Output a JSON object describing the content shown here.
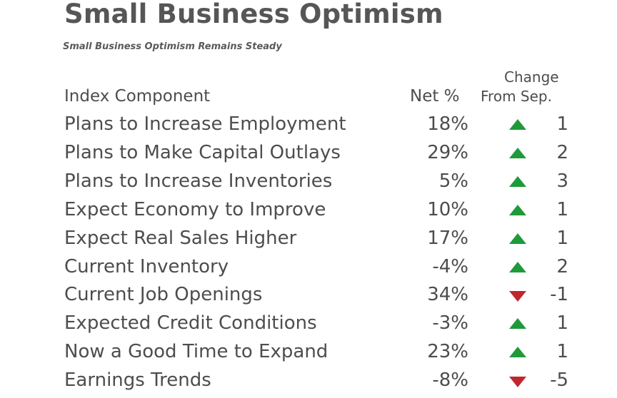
{
  "title": "Small Business Optimism",
  "subtitle": "Small Business Optimism Remains Steady",
  "headers": {
    "component": "Index Component",
    "net": "Net %",
    "change_line1": "Change",
    "change_line2": "From Sep."
  },
  "colors": {
    "up": "#1f9a3a",
    "down": "#c0272d",
    "text": "#4d4d4d"
  },
  "chart_data": {
    "type": "table",
    "title": "Small Business Optimism",
    "subtitle": "Small Business Optimism Remains Steady",
    "columns": [
      "Index Component",
      "Net %",
      "Change From Sep."
    ],
    "rows": [
      {
        "label": "Plans to Increase Employment",
        "net": "18%",
        "direction": "up",
        "change": "1"
      },
      {
        "label": "Plans to Make Capital Outlays",
        "net": "29%",
        "direction": "up",
        "change": "2"
      },
      {
        "label": "Plans to Increase Inventories",
        "net": "5%",
        "direction": "up",
        "change": "3"
      },
      {
        "label": "Expect Economy to Improve",
        "net": "10%",
        "direction": "up",
        "change": "1"
      },
      {
        "label": "Expect Real Sales Higher",
        "net": "17%",
        "direction": "up",
        "change": "1"
      },
      {
        "label": "Current Inventory",
        "net": "-4%",
        "direction": "up",
        "change": "2"
      },
      {
        "label": "Current Job Openings",
        "net": "34%",
        "direction": "down",
        "change": "-1"
      },
      {
        "label": "Expected Credit Conditions",
        "net": "-3%",
        "direction": "up",
        "change": "1"
      },
      {
        "label": "Now a Good Time to Expand",
        "net": "23%",
        "direction": "up",
        "change": "1"
      },
      {
        "label": "Earnings Trends",
        "net": "-8%",
        "direction": "down",
        "change": "-5"
      }
    ]
  }
}
